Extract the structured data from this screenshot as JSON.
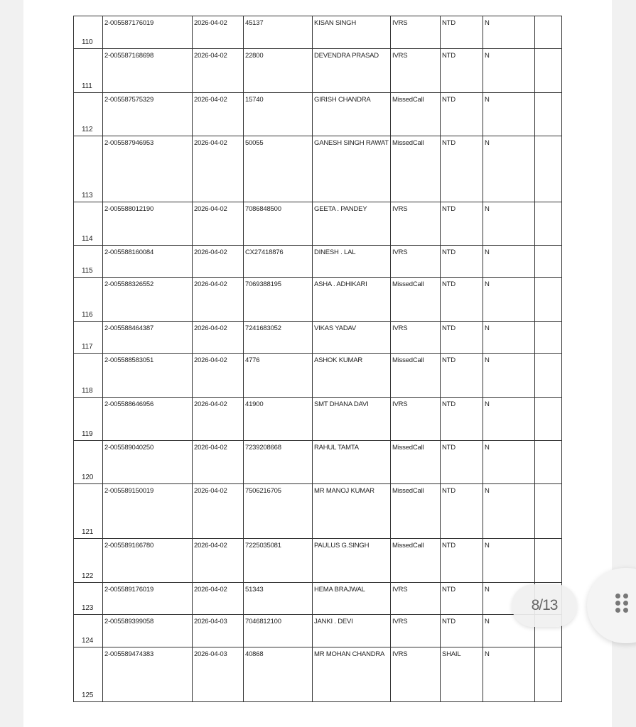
{
  "viewer": {
    "page_indicator": "8/13",
    "menu_icon": "grid-dots-icon"
  },
  "table": {
    "rows": [
      [
        "110",
        "2-005587176019",
        "2026-04-02",
        "45137",
        "KISAN SINGH",
        "IVRS",
        "NTD",
        "N",
        ""
      ],
      [
        "111",
        "2-005587168698",
        "2026-04-02",
        "22800",
        "DEVENDRA PRASAD",
        "IVRS",
        "NTD",
        "N",
        ""
      ],
      [
        "112",
        "2-005587575329",
        "2026-04-02",
        "15740",
        "GIRISH CHANDRA",
        "MissedCall",
        "NTD",
        "N",
        ""
      ],
      [
        "113",
        "2-005587946953",
        "2026-04-02",
        "50055",
        "GANESH SINGH RAWAT",
        "MissedCall",
        "NTD",
        "N",
        ""
      ],
      [
        "114",
        "2-005588012190",
        "2026-04-02",
        "7086848500",
        "GEETA . PANDEY",
        "IVRS",
        "NTD",
        "N",
        ""
      ],
      [
        "115",
        "2-005588160084",
        "2026-04-02",
        "CX27418876",
        "DINESH . LAL",
        "IVRS",
        "NTD",
        "N",
        ""
      ],
      [
        "116",
        "2-005588326552",
        "2026-04-02",
        "7069388195",
        "ASHA . ADHIKARI",
        "MissedCall",
        "NTD",
        "N",
        ""
      ],
      [
        "117",
        "2-005588464387",
        "2026-04-02",
        "7241683052",
        "VIKAS YADAV",
        "IVRS",
        "NTD",
        "N",
        ""
      ],
      [
        "118",
        "2-005588583051",
        "2026-04-02",
        "4776",
        "ASHOK KUMAR",
        "MissedCall",
        "NTD",
        "N",
        ""
      ],
      [
        "119",
        "2-005588646956",
        "2026-04-02",
        "41900",
        "SMT DHANA DAVI",
        "IVRS",
        "NTD",
        "N",
        ""
      ],
      [
        "120",
        "2-005589040250",
        "2026-04-02",
        "7239208668",
        "RAHUL TAMTA",
        "MissedCall",
        "NTD",
        "N",
        ""
      ],
      [
        "121",
        "2-005589150019",
        "2026-04-02",
        "7506216705",
        "MR MANOJ KUMAR",
        "MissedCall",
        "NTD",
        "N",
        ""
      ],
      [
        "122",
        "2-005589166780",
        "2026-04-02",
        "7225035081",
        "PAULUS G.SINGH",
        "MissedCall",
        "NTD",
        "N",
        ""
      ],
      [
        "123",
        "2-005589176019",
        "2026-04-02",
        "51343",
        "HEMA BRAJWAL",
        "IVRS",
        "NTD",
        "N",
        ""
      ],
      [
        "124",
        "2-005589399058",
        "2026-04-03",
        "7046812100",
        "JANKI . DEVI",
        "IVRS",
        "NTD",
        "N",
        ""
      ],
      [
        "125",
        "2-005589474383",
        "2026-04-03",
        "40868",
        "MR MOHAN CHANDRA",
        "IVRS",
        "SHAIL",
        "N",
        ""
      ]
    ]
  }
}
